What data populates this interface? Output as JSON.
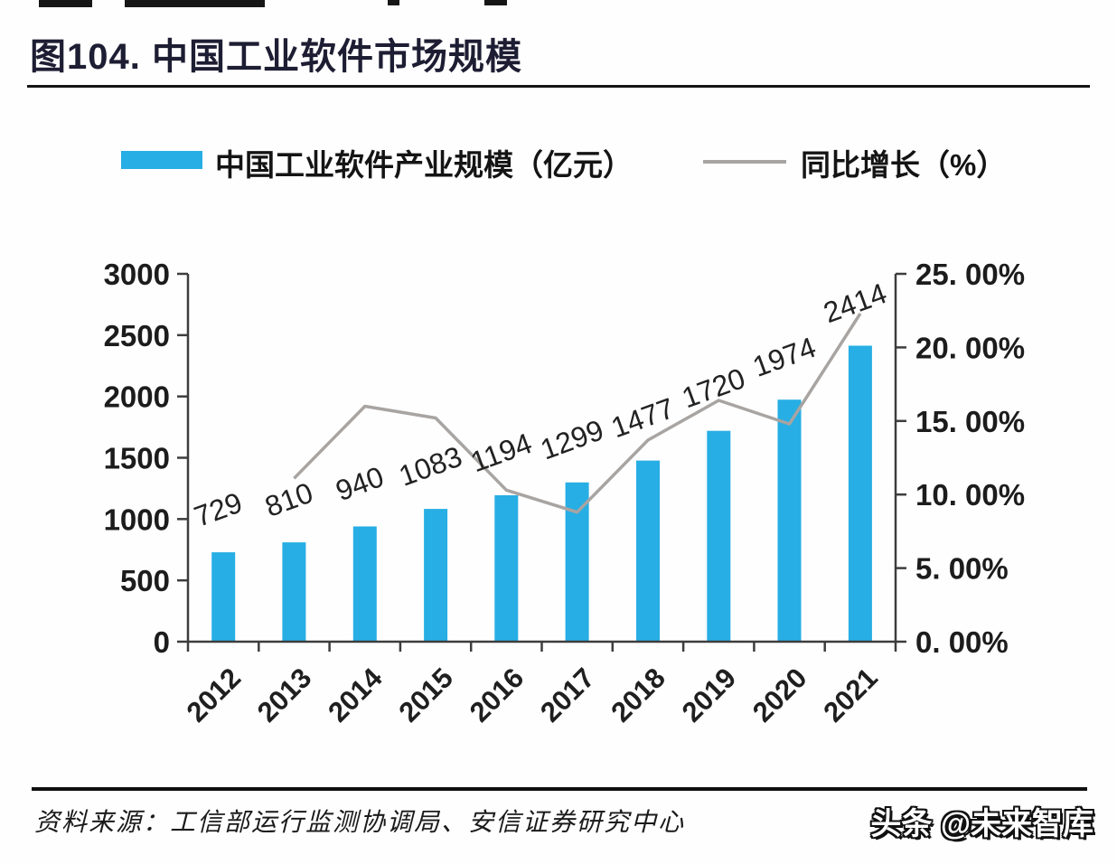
{
  "page": {
    "title": "图104. 中国工业软件市场规模"
  },
  "legend": {
    "bar_label": "中国工业软件产业规模（亿元）",
    "line_label": "同比增长（%）"
  },
  "chart_data": {
    "type": "bar+line",
    "title": "中国工业软件市场规模",
    "categories": [
      "2012",
      "2013",
      "2014",
      "2015",
      "2016",
      "2017",
      "2018",
      "2019",
      "2020",
      "2021"
    ],
    "series": [
      {
        "name": "中国工业软件产业规模（亿元）",
        "type": "bar",
        "axis": "left",
        "color": "#27aee4",
        "values": [
          729,
          810,
          940,
          1083,
          1194,
          1299,
          1477,
          1720,
          1974,
          2414
        ]
      },
      {
        "name": "同比增长（%）",
        "type": "line",
        "axis": "right",
        "color": "#a8a4a2",
        "values": [
          null,
          11.1,
          16.0,
          15.2,
          10.3,
          8.8,
          13.7,
          16.4,
          14.8,
          22.3
        ]
      }
    ],
    "bar_data_labels": [
      "729",
      "810",
      "940",
      "1083",
      "1194",
      "1299",
      "1477",
      "1720",
      "1974",
      "2414"
    ],
    "left_axis": {
      "min": 0,
      "max": 3000,
      "step": 500,
      "tick_labels": [
        "0",
        "500",
        "1000",
        "1500",
        "2000",
        "2500",
        "3000"
      ]
    },
    "right_axis": {
      "min": 0,
      "max": 25,
      "step": 5,
      "tick_labels": [
        "0. 00%",
        "5. 00%",
        "10. 00%",
        "15. 00%",
        "20. 00%",
        "25. 00%"
      ]
    },
    "grid": false,
    "legend_position": "top"
  },
  "footer": {
    "source": "资料来源：工信部运行监测协调局、安信证券研究中心",
    "watermark": "头条 @未来智库"
  }
}
